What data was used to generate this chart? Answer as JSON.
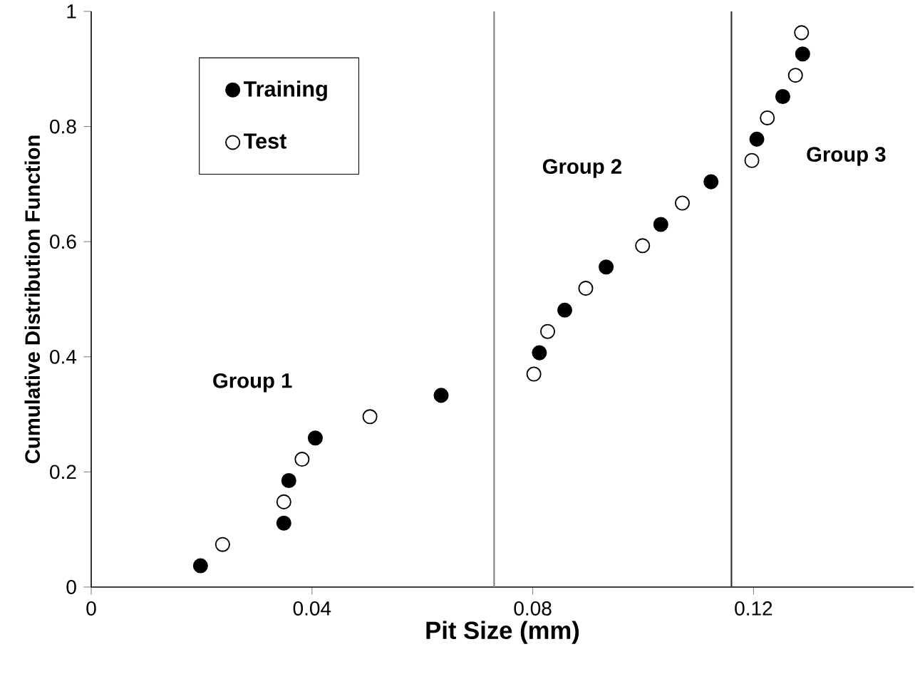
{
  "chart_data": {
    "type": "scatter",
    "xlabel": "Pit Size (mm)",
    "ylabel": "Cumulative Distribution Function",
    "xlim": [
      0,
      0.149
    ],
    "ylim": [
      0,
      1
    ],
    "xticks": [
      0,
      0.04,
      0.08,
      0.12
    ],
    "yticks": [
      0,
      0.2,
      0.4,
      0.6,
      0.8,
      1
    ],
    "marker": "circle",
    "legend": "top left",
    "grid": false,
    "series": [
      {
        "name": "Training",
        "color": "#000000",
        "x": [
          0.0198,
          0.0349,
          0.0358,
          0.0406,
          0.0634,
          0.0812,
          0.0858,
          0.0933,
          0.1032,
          0.1123,
          0.1206,
          0.1253,
          0.1289
        ],
        "values": [
          0.037,
          0.111,
          0.185,
          0.259,
          0.333,
          0.407,
          0.481,
          0.556,
          0.63,
          0.704,
          0.778,
          0.852,
          0.926
        ]
      },
      {
        "name": "Test",
        "color": "#ffffff",
        "x": [
          0.0238,
          0.0349,
          0.0382,
          0.0505,
          0.0802,
          0.0827,
          0.0896,
          0.0999,
          0.1071,
          0.1197,
          0.1225,
          0.1276,
          0.1287
        ],
        "values": [
          0.074,
          0.148,
          0.222,
          0.296,
          0.37,
          0.444,
          0.519,
          0.593,
          0.667,
          0.741,
          0.815,
          0.889,
          0.963
        ]
      }
    ],
    "ref_lines": [
      {
        "axis": "x",
        "value": 0.073,
        "color": "#808080"
      },
      {
        "axis": "x",
        "value": 0.116,
        "color": "#303030"
      }
    ],
    "annotations": [
      "Group 1",
      "Group 2",
      "Group 3"
    ]
  }
}
